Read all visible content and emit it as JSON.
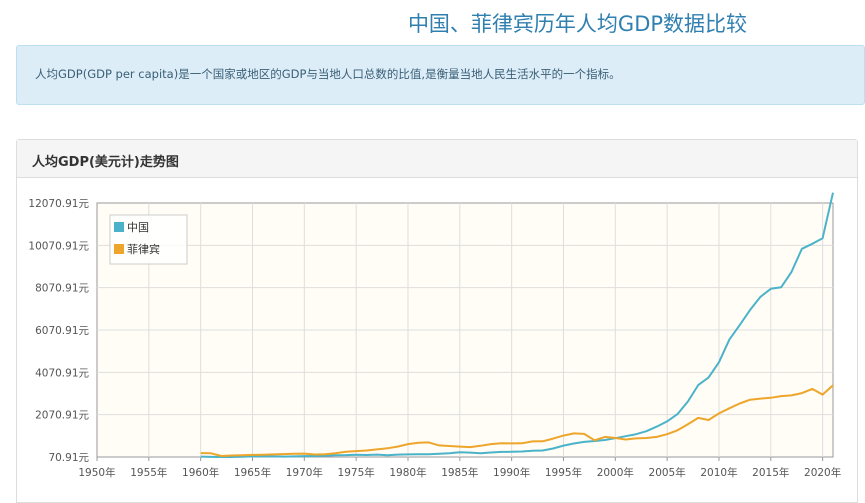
{
  "page": {
    "title": "中国、菲律宾历年人均GDP数据比较",
    "description": "人均GDP(GDP per capita)是一个国家或地区的GDP与当地人口总数的比值,是衡量当地人民生活水平的一个指标。"
  },
  "panel": {
    "title": "人均GDP(美元计)走势图"
  },
  "chart_data": {
    "type": "line",
    "title": "",
    "xlabel": "",
    "ylabel": "",
    "xlim": [
      1950,
      2021
    ],
    "ylim": [
      70.91,
      12070.91
    ],
    "grid": true,
    "legend_position": "top-left",
    "y_ticks": [
      "70.91元",
      "2070.91元",
      "4070.91元",
      "6070.91元",
      "8070.91元",
      "10070.91元",
      "12070.91元"
    ],
    "x_ticks": [
      "1950年",
      "1955年",
      "1960年",
      "1965年",
      "1970年",
      "1975年",
      "1980年",
      "1985年",
      "1990年",
      "1995年",
      "2000年",
      "2005年",
      "2010年",
      "2015年",
      "2020年"
    ],
    "series": [
      {
        "name": "中国",
        "color": "#4bb3c9",
        "x": [
          1960,
          1961,
          1962,
          1963,
          1964,
          1965,
          1966,
          1967,
          1968,
          1969,
          1970,
          1971,
          1972,
          1973,
          1974,
          1975,
          1976,
          1977,
          1978,
          1979,
          1980,
          1981,
          1982,
          1983,
          1984,
          1985,
          1986,
          1987,
          1988,
          1989,
          1990,
          1991,
          1992,
          1993,
          1994,
          1995,
          1996,
          1997,
          1998,
          1999,
          2000,
          2001,
          2002,
          2003,
          2004,
          2005,
          2006,
          2007,
          2008,
          2009,
          2010,
          2011,
          2012,
          2013,
          2014,
          2015,
          2016,
          2017,
          2018,
          2019,
          2020,
          2021
        ],
        "values": [
          90,
          76,
          71,
          73,
          85,
          98,
          104,
          97,
          91,
          100,
          113,
          119,
          132,
          157,
          160,
          178,
          165,
          185,
          156,
          183,
          195,
          197,
          203,
          225,
          250,
          294,
          281,
          252,
          284,
          311,
          318,
          333,
          366,
          377,
          473,
          610,
          709,
          782,
          829,
          873,
          959,
          1053,
          1148,
          1288,
          1508,
          1753,
          2099,
          2694,
          3468,
          3832,
          4550,
          5614,
          6301,
          7020,
          7636,
          8016,
          8094,
          8817,
          9905,
          10144,
          10409,
          12556
        ]
      },
      {
        "name": "菲律宾",
        "color": "#eda52b",
        "x": [
          1960,
          1961,
          1962,
          1963,
          1964,
          1965,
          1966,
          1967,
          1968,
          1969,
          1970,
          1971,
          1972,
          1973,
          1974,
          1975,
          1976,
          1977,
          1978,
          1979,
          1980,
          1981,
          1982,
          1983,
          1984,
          1985,
          1986,
          1987,
          1988,
          1989,
          1990,
          1991,
          1992,
          1993,
          1994,
          1995,
          1996,
          1997,
          1998,
          1999,
          2000,
          2001,
          2002,
          2003,
          2004,
          2005,
          2006,
          2007,
          2008,
          2009,
          2010,
          2011,
          2012,
          2013,
          2014,
          2015,
          2016,
          2017,
          2018,
          2019,
          2020,
          2021
        ],
        "values": [
          255,
          245,
          120,
          140,
          150,
          170,
          180,
          195,
          210,
          220,
          230,
          190,
          200,
          250,
          320,
          350,
          380,
          430,
          480,
          560,
          680,
          740,
          760,
          620,
          590,
          560,
          540,
          600,
          680,
          720,
          715,
          720,
          810,
          815,
          940,
          1080,
          1185,
          1160,
          860,
          1020,
          970,
          900,
          950,
          970,
          1020,
          1150,
          1330,
          1620,
          1920,
          1820,
          2130,
          2370,
          2600,
          2780,
          2830,
          2870,
          2950,
          2980,
          3090,
          3290,
          3020,
          3460
        ]
      }
    ]
  }
}
